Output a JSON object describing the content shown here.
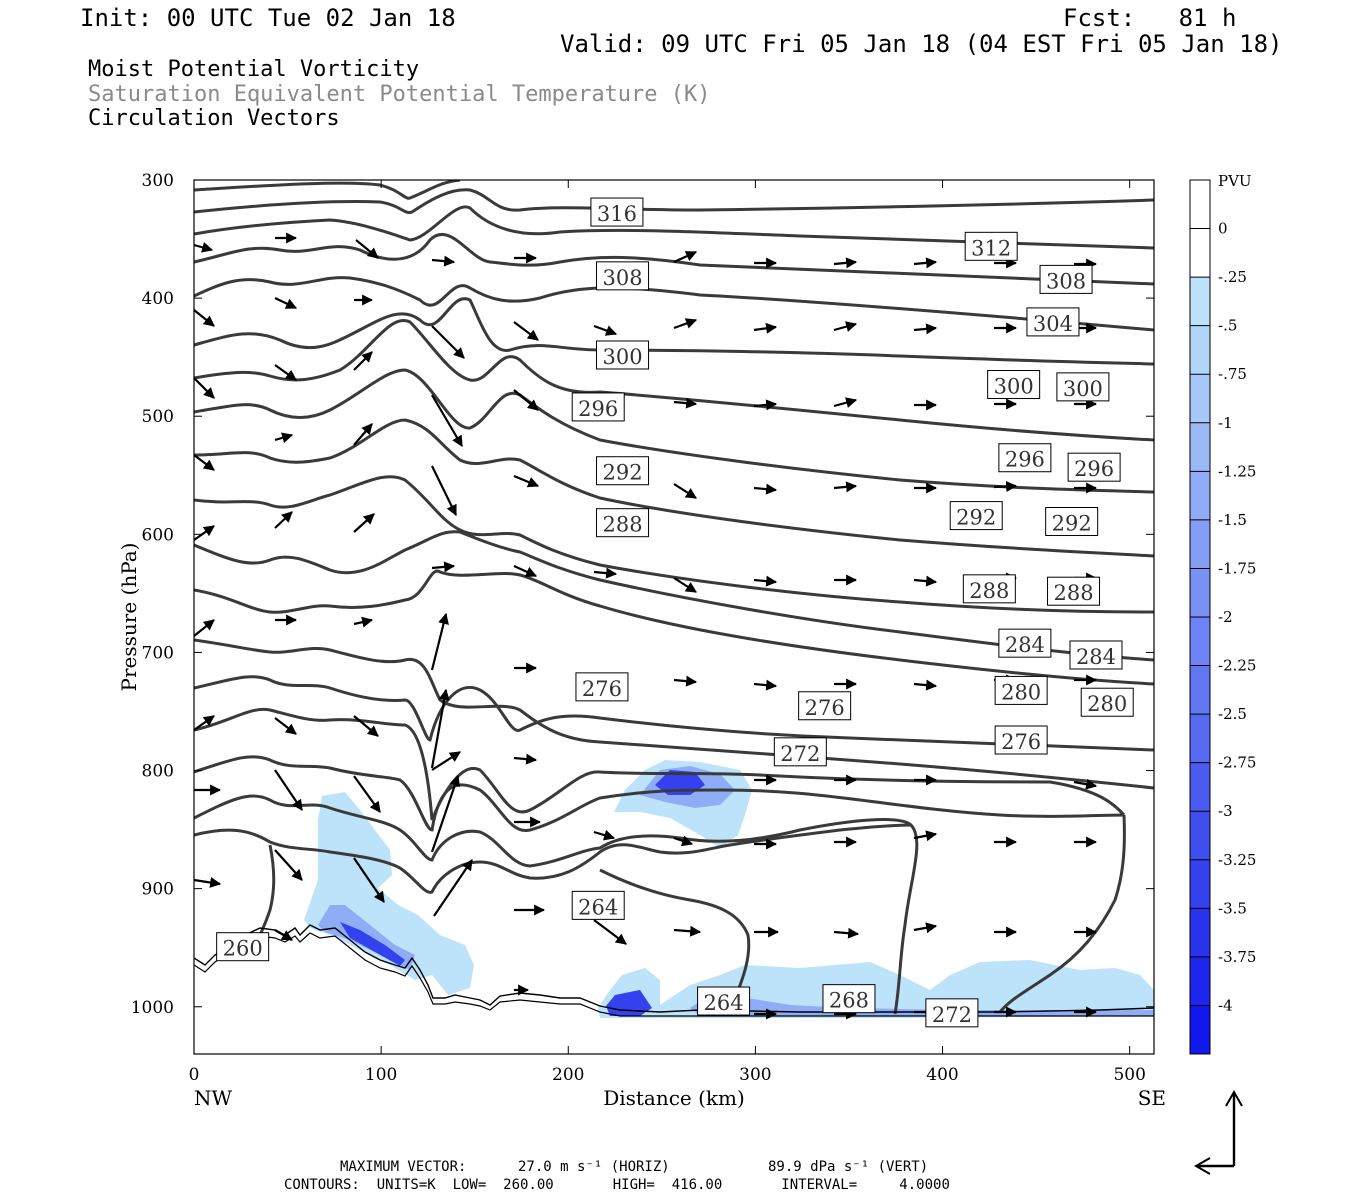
{
  "header": {
    "init": "Init: 00 UTC Tue 02 Jan 18",
    "fcst": "Fcst:   81 h",
    "valid": "Valid: 09 UTC Fri 05 Jan 18 (04 EST Fri 05 Jan 18)"
  },
  "fields": {
    "mpv": "Moist Potential Vorticity",
    "theta": "Saturation Equivalent Potential Temperature (K)",
    "vectors": "Circulation Vectors"
  },
  "footer": {
    "max_vector_label": "MAXIMUM VECTOR:",
    "max_vector_horiz": "27.0 m s⁻¹ (HORIZ)",
    "max_vector_vert": "89.9 dPa s⁻¹ (VERT)",
    "contours": "CONTOURS:  UNITS=K  LOW=  260.00       HIGH=  416.00       INTERVAL=     4.0000"
  },
  "chart_data": {
    "type": "cross-section",
    "xlabel": "Distance (km)",
    "ylabel": "Pressure (hPa)",
    "x_end_labels": [
      "NW",
      "SE"
    ],
    "xlim": [
      0,
      513
    ],
    "ylim": [
      1040,
      300
    ],
    "x_ticks": [
      0,
      100,
      200,
      300,
      400,
      500
    ],
    "y_ticks": [
      300,
      400,
      500,
      600,
      700,
      800,
      900,
      1000
    ],
    "colorbar": {
      "unit": "PVU",
      "ticks": [
        "0",
        "-.25",
        "-.5",
        "-.75",
        "-1",
        "-1.25",
        "-1.5",
        "-1.75",
        "-2",
        "-2.25",
        "-2.5",
        "-2.75",
        "-3",
        "-3.25",
        "-3.5",
        "-3.75",
        "-4"
      ],
      "colors": [
        "#ffffff",
        "#ffffff",
        "#bde3fa",
        "#b1d5f9",
        "#a6c8f8",
        "#9abaf7",
        "#8fadf6",
        "#839ff5",
        "#7892f4",
        "#6c84f3",
        "#6177f2",
        "#5569f1",
        "#4a5cf0",
        "#3e4eef",
        "#3341ee",
        "#2733ed",
        "#1c26ec",
        "#1018eb"
      ]
    },
    "theta_contours": [
      {
        "value": 264,
        "label": "264",
        "label_at": [
          216,
          915
        ]
      },
      {
        "value": 260,
        "label": "260",
        "label_at": [
          26,
          950
        ]
      },
      {
        "value": 264,
        "label": "264",
        "label_at": [
          283,
          996
        ]
      },
      {
        "value": 268,
        "label": "268",
        "label_at": [
          350,
          994
        ]
      },
      {
        "value": 272,
        "label": "272",
        "label_at": [
          405,
          1006
        ]
      },
      {
        "value": 272,
        "label": "272",
        "label_at": [
          324,
          785
        ]
      },
      {
        "value": 276,
        "label": "276",
        "label_at": [
          218,
          730
        ]
      },
      {
        "value": 276,
        "label": "276",
        "label_at": [
          337,
          746
        ]
      },
      {
        "value": 276,
        "label": "276",
        "label_at": [
          442,
          775
        ]
      },
      {
        "value": 280,
        "label": "280",
        "label_at": [
          442,
          733
        ]
      },
      {
        "value": 280,
        "label": "280",
        "label_at": [
          488,
          743
        ]
      },
      {
        "value": 284,
        "label": "284",
        "label_at": [
          444,
          693
        ]
      },
      {
        "value": 284,
        "label": "284",
        "label_at": [
          482,
          703
        ]
      },
      {
        "value": 288,
        "label": "288",
        "label_at": [
          229,
          591
        ]
      },
      {
        "value": 288,
        "label": "288",
        "label_at": [
          425,
          647
        ]
      },
      {
        "value": 288,
        "label": "288",
        "label_at": [
          470,
          649
        ]
      },
      {
        "value": 292,
        "label": "292",
        "label_at": [
          229,
          547
        ]
      },
      {
        "value": 292,
        "label": "292",
        "label_at": [
          418,
          585
        ]
      },
      {
        "value": 292,
        "label": "292",
        "label_at": [
          469,
          590
        ]
      },
      {
        "value": 296,
        "label": "296",
        "label_at": [
          216,
          493
        ]
      },
      {
        "value": 296,
        "label": "296",
        "label_at": [
          444,
          536
        ]
      },
      {
        "value": 296,
        "label": "296",
        "label_at": [
          481,
          544
        ]
      },
      {
        "value": 300,
        "label": "300",
        "label_at": [
          229,
          449
        ]
      },
      {
        "value": 300,
        "label": "300",
        "label_at": [
          438,
          474
        ]
      },
      {
        "value": 300,
        "label": "300",
        "label_at": [
          475,
          476
        ]
      },
      {
        "value": 304,
        "label": "304",
        "label_at": [
          459,
          421
        ]
      },
      {
        "value": 308,
        "label": "308",
        "label_at": [
          229,
          382
        ]
      },
      {
        "value": 308,
        "label": "308",
        "label_at": [
          466,
          385
        ]
      },
      {
        "value": 312,
        "label": "312",
        "label_at": [
          426,
          357
        ]
      },
      {
        "value": 316,
        "label": "316",
        "label_at": [
          226,
          328
        ]
      }
    ]
  }
}
